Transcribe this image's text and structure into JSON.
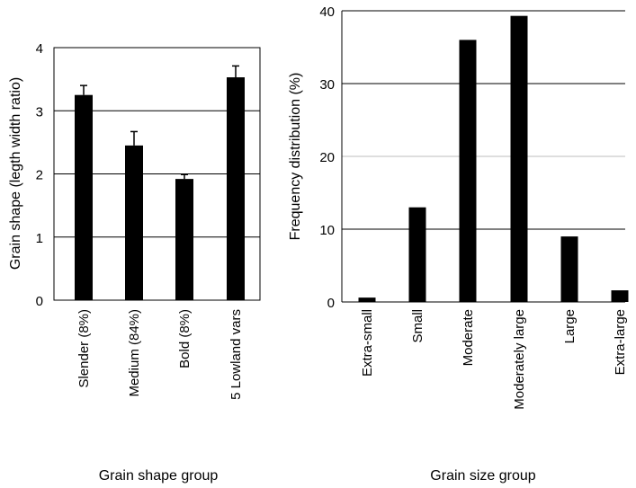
{
  "chart_data": [
    {
      "type": "bar",
      "xlabel": "Grain shape group",
      "ylabel": "Grain shape (legth width ratio)",
      "ylim": [
        0,
        4
      ],
      "yticks": [
        0,
        1,
        2,
        3,
        4
      ],
      "grid": "horizontal at major ticks",
      "categories": [
        "Slender (8%)",
        "Medium (84%)",
        "Bold (8%)",
        "5 Lowland vars"
      ],
      "values": [
        3.25,
        2.45,
        1.92,
        3.53
      ],
      "errors": [
        0.15,
        0.22,
        0.07,
        0.18
      ]
    },
    {
      "type": "bar",
      "xlabel": "Grain size group",
      "ylabel": "Frequency distribution (%)",
      "ylim": [
        0,
        40
      ],
      "yticks": [
        0,
        10,
        20,
        30,
        40
      ],
      "grid": "horizontal at major ticks",
      "categories": [
        "Extra-small",
        "Small",
        "Moderate",
        "Moderately large",
        "Large",
        "Extra-large"
      ],
      "values": [
        0.6,
        13,
        36,
        39.3,
        9,
        1.6
      ]
    }
  ]
}
